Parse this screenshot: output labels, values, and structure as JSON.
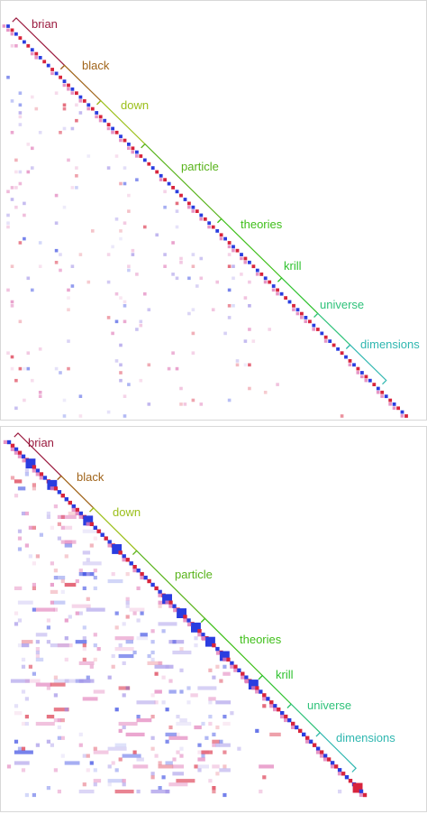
{
  "chart_data": [
    {
      "type": "heatmap",
      "panel": "top",
      "segments": [
        {
          "label": "brian",
          "color": "#9b1b3f"
        },
        {
          "label": "black",
          "color": "#a0641a"
        },
        {
          "label": "down",
          "color": "#9bbf1a"
        },
        {
          "label": "particle",
          "color": "#58b31a"
        },
        {
          "label": "theories",
          "color": "#3fbf1a"
        },
        {
          "label": "krill",
          "color": "#2fc22f"
        },
        {
          "label": "universe",
          "color": "#2fc27a"
        },
        {
          "label": "dimensions",
          "color": "#2fb7b0"
        }
      ],
      "legend": "none",
      "grid": false
    },
    {
      "type": "heatmap",
      "panel": "bottom",
      "segments": [
        {
          "label": "brian",
          "color": "#9b1b3f"
        },
        {
          "label": "black",
          "color": "#a0641a"
        },
        {
          "label": "down",
          "color": "#9bbf1a"
        },
        {
          "label": "particle",
          "color": "#58b31a"
        },
        {
          "label": "theories",
          "color": "#3fbf1a"
        },
        {
          "label": "krill",
          "color": "#2fc22f"
        },
        {
          "label": "universe",
          "color": "#2fc27a"
        },
        {
          "label": "dimensions",
          "color": "#2fb7b0"
        }
      ],
      "legend": "none",
      "grid": false
    }
  ],
  "colors": {
    "red": "#d8243c",
    "blue": "#2a3de0",
    "pink": "#e07ab8",
    "lavender": "#9f8fe6"
  }
}
